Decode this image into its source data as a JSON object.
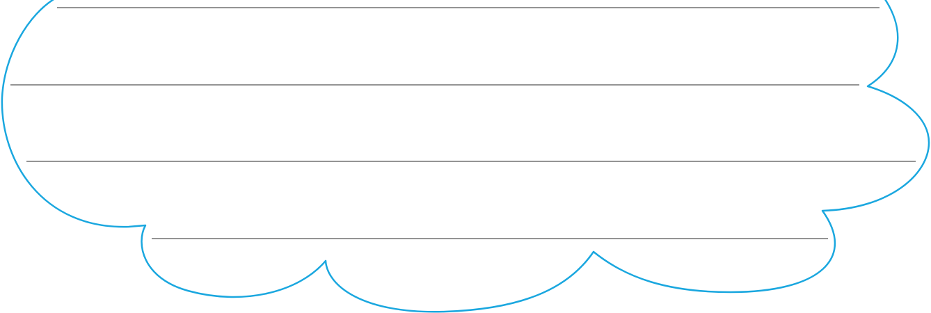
{
  "colors": {
    "background": "#ffffff",
    "cloud_outline": "#1aa7df",
    "writing_line": "#555555"
  },
  "icons": {
    "shape": "cloud-outline-icon"
  }
}
